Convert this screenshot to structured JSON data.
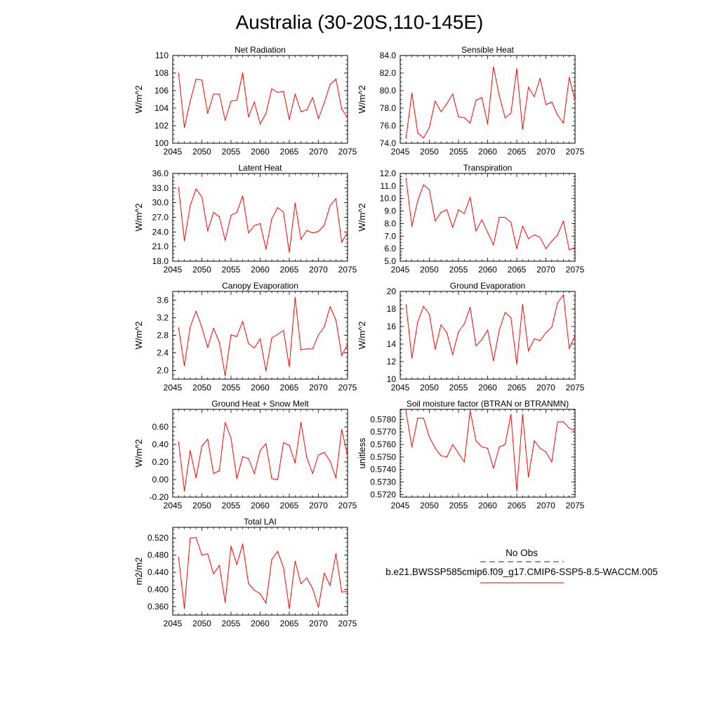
{
  "title": "Australia (30-20S,110-145E)",
  "legend": {
    "obs_label": "No Obs",
    "model_label": "b.e21.BWSSP585cmip6.f09_g17.CMIP6-SSP5-8.5-WACCM.005",
    "obs_color": "#4b4bc8",
    "model_color": "#ff0000"
  },
  "chart_data": [
    {
      "type": "line",
      "title": "Net Radiation",
      "ylabel": "W/m^2",
      "xlim": [
        2045,
        2075
      ],
      "ylim": [
        100,
        110
      ],
      "xticks": [
        2045,
        2050,
        2055,
        2060,
        2065,
        2070,
        2075
      ],
      "yticks": [
        100,
        102,
        104,
        106,
        108,
        110
      ],
      "yticklabels": [
        "100",
        "102",
        "104",
        "106",
        "108",
        "110"
      ],
      "x": [
        2046,
        2047,
        2048,
        2049,
        2050,
        2051,
        2052,
        2053,
        2054,
        2055,
        2056,
        2057,
        2058,
        2059,
        2060,
        2061,
        2062,
        2063,
        2064,
        2065,
        2066,
        2067,
        2068,
        2069,
        2070,
        2071,
        2072,
        2073,
        2074,
        2075
      ],
      "series": [
        {
          "values": [
            108.0,
            101.8,
            104.8,
            107.3,
            107.2,
            103.4,
            105.6,
            105.6,
            102.6,
            104.8,
            104.9,
            108.0,
            103.0,
            104.7,
            102.2,
            103.4,
            106.2,
            105.8,
            105.9,
            102.7,
            105.6,
            103.6,
            103.8,
            105.2,
            102.8,
            104.6,
            106.7,
            107.3,
            103.9,
            102.9
          ],
          "color": "#ff0000"
        }
      ]
    },
    {
      "type": "line",
      "title": "Sensible Heat",
      "ylabel": "W/m^2",
      "xlim": [
        2045,
        2075
      ],
      "ylim": [
        74.0,
        84.0
      ],
      "xticks": [
        2045,
        2050,
        2055,
        2060,
        2065,
        2070,
        2075
      ],
      "yticks": [
        74,
        76,
        78,
        80,
        82,
        84
      ],
      "yticklabels": [
        "74.0",
        "76.0",
        "78.0",
        "80.0",
        "82.0",
        "84.0"
      ],
      "x": [
        2046,
        2047,
        2048,
        2049,
        2050,
        2051,
        2052,
        2053,
        2054,
        2055,
        2056,
        2057,
        2058,
        2059,
        2060,
        2061,
        2062,
        2063,
        2064,
        2065,
        2066,
        2067,
        2068,
        2069,
        2070,
        2071,
        2072,
        2073,
        2074,
        2075
      ],
      "series": [
        {
          "values": [
            74.6,
            79.7,
            75.2,
            74.6,
            75.8,
            78.8,
            77.6,
            78.5,
            79.6,
            77.0,
            76.9,
            76.3,
            78.9,
            79.2,
            76.2,
            82.7,
            79.4,
            76.9,
            77.4,
            82.5,
            75.6,
            80.4,
            79.3,
            81.4,
            78.4,
            78.7,
            77.2,
            76.3,
            81.5,
            78.9
          ],
          "color": "#ff0000"
        }
      ]
    },
    {
      "type": "line",
      "title": "Latent Heat",
      "ylabel": "W/m^2",
      "xlim": [
        2045,
        2075
      ],
      "ylim": [
        18.0,
        36.0
      ],
      "xticks": [
        2045,
        2050,
        2055,
        2060,
        2065,
        2070,
        2075
      ],
      "yticks": [
        18,
        21,
        24,
        27,
        30,
        33,
        36
      ],
      "yticklabels": [
        "18.0",
        "21.0",
        "24.0",
        "27.0",
        "30.0",
        "33.0",
        "36.0"
      ],
      "x": [
        2046,
        2047,
        2048,
        2049,
        2050,
        2051,
        2052,
        2053,
        2054,
        2055,
        2056,
        2057,
        2058,
        2059,
        2060,
        2061,
        2062,
        2063,
        2064,
        2065,
        2066,
        2067,
        2068,
        2069,
        2070,
        2071,
        2072,
        2073,
        2074,
        2075
      ],
      "series": [
        {
          "values": [
            33.1,
            22.2,
            29.4,
            32.8,
            31.2,
            24.2,
            28.0,
            27.1,
            22.3,
            27.4,
            28.0,
            31.4,
            23.8,
            25.3,
            25.7,
            20.5,
            26.7,
            29.0,
            28.1,
            19.8,
            29.9,
            22.5,
            24.3,
            23.8,
            24.1,
            25.4,
            29.4,
            30.8,
            21.9,
            23.9
          ],
          "color": "#ff0000"
        }
      ]
    },
    {
      "type": "line",
      "title": "Transpiration",
      "ylabel": "W/m^2",
      "xlim": [
        2045,
        2075
      ],
      "ylim": [
        5.0,
        12.0
      ],
      "xticks": [
        2045,
        2050,
        2055,
        2060,
        2065,
        2070,
        2075
      ],
      "yticks": [
        5,
        6,
        7,
        8,
        9,
        10,
        11,
        12
      ],
      "yticklabels": [
        "5.0",
        "6.0",
        "7.0",
        "8.0",
        "9.0",
        "10.0",
        "11.0",
        "12.0"
      ],
      "x": [
        2046,
        2047,
        2048,
        2049,
        2050,
        2051,
        2052,
        2053,
        2054,
        2055,
        2056,
        2057,
        2058,
        2059,
        2060,
        2061,
        2062,
        2063,
        2064,
        2065,
        2066,
        2067,
        2068,
        2069,
        2070,
        2071,
        2072,
        2073,
        2074,
        2075
      ],
      "series": [
        {
          "values": [
            11.6,
            7.8,
            9.8,
            11.1,
            10.7,
            8.2,
            8.9,
            9.1,
            7.7,
            9.1,
            8.8,
            10.1,
            7.4,
            8.3,
            7.3,
            6.3,
            8.5,
            8.5,
            8.1,
            6.0,
            7.8,
            6.8,
            7.1,
            6.9,
            6.0,
            6.6,
            7.1,
            8.2,
            5.9,
            6.1
          ],
          "color": "#ff0000"
        }
      ]
    },
    {
      "type": "line",
      "title": "Canopy Evaporation",
      "ylabel": "W/m^2",
      "xlim": [
        2045,
        2075
      ],
      "ylim": [
        1.8,
        3.8
      ],
      "xticks": [
        2045,
        2050,
        2055,
        2060,
        2065,
        2070,
        2075
      ],
      "yticks": [
        2.0,
        2.4,
        2.8,
        3.2,
        3.6
      ],
      "yticklabels": [
        "2.0",
        "2.4",
        "2.8",
        "3.2",
        "3.6"
      ],
      "x": [
        2046,
        2047,
        2048,
        2049,
        2050,
        2051,
        2052,
        2053,
        2054,
        2055,
        2056,
        2057,
        2058,
        2059,
        2060,
        2061,
        2062,
        2063,
        2064,
        2065,
        2066,
        2067,
        2068,
        2069,
        2070,
        2071,
        2072,
        2073,
        2074,
        2075
      ],
      "series": [
        {
          "values": [
            2.97,
            2.11,
            2.99,
            3.35,
            2.98,
            2.52,
            2.96,
            2.64,
            1.88,
            2.81,
            2.77,
            3.12,
            2.61,
            2.51,
            2.72,
            1.99,
            2.74,
            2.82,
            2.91,
            2.08,
            3.66,
            2.47,
            2.49,
            2.49,
            2.81,
            2.99,
            3.45,
            3.15,
            2.34,
            2.59
          ],
          "color": "#ff0000"
        }
      ]
    },
    {
      "type": "line",
      "title": "Ground Evaporation",
      "ylabel": "W/m^2",
      "xlim": [
        2045,
        2075
      ],
      "ylim": [
        10,
        20
      ],
      "xticks": [
        2045,
        2050,
        2055,
        2060,
        2065,
        2070,
        2075
      ],
      "yticks": [
        10,
        12,
        14,
        16,
        18,
        20
      ],
      "yticklabels": [
        "10",
        "12",
        "14",
        "16",
        "18",
        "20"
      ],
      "x": [
        2046,
        2047,
        2048,
        2049,
        2050,
        2051,
        2052,
        2053,
        2054,
        2055,
        2056,
        2057,
        2058,
        2059,
        2060,
        2061,
        2062,
        2063,
        2064,
        2065,
        2066,
        2067,
        2068,
        2069,
        2070,
        2071,
        2072,
        2073,
        2074,
        2075
      ],
      "series": [
        {
          "values": [
            18.5,
            12.4,
            16.5,
            18.3,
            17.4,
            13.4,
            16.2,
            15.3,
            12.8,
            15.4,
            16.3,
            18.2,
            13.8,
            14.5,
            15.6,
            12.1,
            15.6,
            17.6,
            17.0,
            11.7,
            18.5,
            13.2,
            14.6,
            14.4,
            15.3,
            15.9,
            18.7,
            19.6,
            13.5,
            15.0
          ],
          "color": "#ff0000"
        }
      ]
    },
    {
      "type": "line",
      "title": "Ground Heat + Snow Melt",
      "ylabel": "W/m^2",
      "xlim": [
        2045,
        2075
      ],
      "ylim": [
        -0.2,
        0.8
      ],
      "xticks": [
        2045,
        2050,
        2055,
        2060,
        2065,
        2070,
        2075
      ],
      "yticks": [
        -0.2,
        0.0,
        0.2,
        0.4,
        0.6
      ],
      "yticklabels": [
        "-0.20",
        "0.00",
        "0.20",
        "0.40",
        "0.60"
      ],
      "x": [
        2046,
        2047,
        2048,
        2049,
        2050,
        2051,
        2052,
        2053,
        2054,
        2055,
        2056,
        2057,
        2058,
        2059,
        2060,
        2061,
        2062,
        2063,
        2064,
        2065,
        2066,
        2067,
        2068,
        2069,
        2070,
        2071,
        2072,
        2073,
        2074,
        2075
      ],
      "series": [
        {
          "values": [
            0.43,
            -0.13,
            0.33,
            0.02,
            0.38,
            0.46,
            0.07,
            0.1,
            0.65,
            0.47,
            0.01,
            0.26,
            0.24,
            0.07,
            0.33,
            0.41,
            0.01,
            0.0,
            0.42,
            0.39,
            0.19,
            0.65,
            0.25,
            0.07,
            0.28,
            0.31,
            0.21,
            0.02,
            0.57,
            0.27
          ],
          "color": "#ff0000"
        }
      ]
    },
    {
      "type": "line",
      "title": "Soil moisture factor (BTRAN or BTRANMN)",
      "ylabel": "unitless",
      "xlim": [
        2045,
        2075
      ],
      "ylim": [
        0.5718,
        0.5788
      ],
      "xticks": [
        2045,
        2050,
        2055,
        2060,
        2065,
        2070,
        2075
      ],
      "yticks": [
        0.572,
        0.573,
        0.574,
        0.575,
        0.576,
        0.577,
        0.578
      ],
      "yticklabels": [
        "0.5720",
        "0.5730",
        "0.5740",
        "0.5750",
        "0.5760",
        "0.5770",
        "0.5780"
      ],
      "x": [
        2046,
        2047,
        2048,
        2049,
        2050,
        2051,
        2052,
        2053,
        2054,
        2055,
        2056,
        2057,
        2058,
        2059,
        2060,
        2061,
        2062,
        2063,
        2064,
        2065,
        2066,
        2067,
        2068,
        2069,
        2070,
        2071,
        2072,
        2073,
        2074,
        2075
      ],
      "series": [
        {
          "values": [
            0.5786,
            0.5758,
            0.5781,
            0.5781,
            0.5766,
            0.5757,
            0.5751,
            0.575,
            0.576,
            0.5753,
            0.5746,
            0.5787,
            0.5763,
            0.5758,
            0.5757,
            0.5741,
            0.5758,
            0.576,
            0.5784,
            0.5723,
            0.5784,
            0.5734,
            0.5763,
            0.5757,
            0.5754,
            0.5746,
            0.5778,
            0.5778,
            0.5773,
            0.5771
          ],
          "color": "#ff0000"
        }
      ]
    },
    {
      "type": "line",
      "title": "Total LAI",
      "ylabel": "m2/m2",
      "xlim": [
        2045,
        2075
      ],
      "ylim": [
        0.34,
        0.545
      ],
      "xticks": [
        2045,
        2050,
        2055,
        2060,
        2065,
        2070,
        2075
      ],
      "yticks": [
        0.36,
        0.4,
        0.44,
        0.48,
        0.52
      ],
      "yticklabels": [
        "0.360",
        "0.400",
        "0.440",
        "0.480",
        "0.520"
      ],
      "x": [
        2046,
        2047,
        2048,
        2049,
        2050,
        2051,
        2052,
        2053,
        2054,
        2055,
        2056,
        2057,
        2058,
        2059,
        2060,
        2061,
        2062,
        2063,
        2064,
        2065,
        2066,
        2067,
        2068,
        2069,
        2070,
        2071,
        2072,
        2073,
        2074,
        2075
      ],
      "series": [
        {
          "values": [
            0.475,
            0.356,
            0.52,
            0.521,
            0.48,
            0.483,
            0.436,
            0.456,
            0.37,
            0.501,
            0.458,
            0.506,
            0.414,
            0.398,
            0.39,
            0.368,
            0.47,
            0.489,
            0.451,
            0.355,
            0.466,
            0.413,
            0.427,
            0.402,
            0.358,
            0.438,
            0.409,
            0.483,
            0.394,
            0.395
          ],
          "color": "#ff0000"
        }
      ]
    }
  ]
}
